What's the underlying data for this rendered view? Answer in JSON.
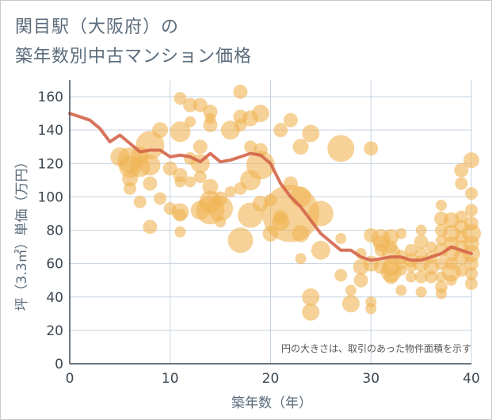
{
  "title_line1": "関目駅（大阪府）の",
  "title_line2": "築年数別中古マンション価格",
  "chart_data": {
    "type": "scatter",
    "xlabel": "築年数（年）",
    "ylabel": "坪（3.3㎡）単価（万円）",
    "xlim": [
      0,
      40
    ],
    "ylim": [
      0,
      170
    ],
    "x_ticks": [
      0,
      10,
      20,
      30,
      40
    ],
    "y_ticks": [
      0,
      20,
      40,
      60,
      80,
      100,
      120,
      140,
      160
    ],
    "grid": true,
    "annotation": "円の大きさは、取引のあった物件面積を示す",
    "bubble_color": "#f0b454",
    "line_color": "#d4654a",
    "points": [
      [
        9,
        140,
        10
      ],
      [
        11,
        139,
        13
      ],
      [
        11,
        159,
        8
      ],
      [
        12,
        155,
        9
      ],
      [
        13,
        155,
        9
      ],
      [
        14,
        151,
        9
      ],
      [
        14,
        147,
        7
      ],
      [
        14,
        143,
        9
      ],
      [
        12,
        145,
        7
      ],
      [
        16,
        140,
        12
      ],
      [
        17,
        163,
        9
      ],
      [
        17,
        148,
        9
      ],
      [
        17,
        143,
        8
      ],
      [
        18,
        147,
        10
      ],
      [
        18,
        130,
        8
      ],
      [
        19,
        150,
        11
      ],
      [
        5,
        124,
        12
      ],
      [
        6,
        122,
        16
      ],
      [
        6,
        118,
        14
      ],
      [
        7,
        118,
        13
      ],
      [
        7,
        125,
        11
      ],
      [
        8,
        131,
        18
      ],
      [
        8,
        119,
        13
      ],
      [
        6,
        111,
        10
      ],
      [
        6,
        105,
        8
      ],
      [
        8,
        108,
        9
      ],
      [
        9,
        99,
        8
      ],
      [
        7,
        97,
        8
      ],
      [
        10,
        117,
        9
      ],
      [
        11,
        113,
        9
      ],
      [
        11,
        109,
        7
      ],
      [
        12,
        109,
        7
      ],
      [
        12,
        123,
        8
      ],
      [
        13,
        130,
        9
      ],
      [
        13,
        112,
        8
      ],
      [
        13,
        120,
        12
      ],
      [
        14,
        106,
        10
      ],
      [
        14,
        97,
        14
      ],
      [
        14,
        92,
        18
      ],
      [
        15,
        99,
        9
      ],
      [
        15,
        93,
        16
      ],
      [
        16,
        103,
        7
      ],
      [
        17,
        105,
        8
      ],
      [
        18,
        110,
        13
      ],
      [
        19,
        119,
        18
      ],
      [
        19,
        128,
        9
      ],
      [
        10,
        93,
        8
      ],
      [
        11,
        91,
        11
      ],
      [
        11,
        89,
        8
      ],
      [
        13,
        92,
        12
      ],
      [
        15,
        85,
        7
      ],
      [
        8,
        82,
        9
      ],
      [
        11,
        79,
        7
      ],
      [
        17,
        74,
        16
      ],
      [
        18,
        89,
        16
      ],
      [
        19,
        96,
        10
      ],
      [
        21,
        140,
        9
      ],
      [
        22,
        146,
        9
      ],
      [
        23,
        130,
        10
      ],
      [
        24,
        138,
        11
      ],
      [
        22,
        108,
        9
      ],
      [
        23,
        100,
        13
      ],
      [
        22,
        90,
        36
      ],
      [
        21,
        88,
        9
      ],
      [
        20,
        98,
        8
      ],
      [
        21,
        85,
        11
      ],
      [
        20,
        78,
        10
      ],
      [
        23,
        78,
        11
      ],
      [
        23,
        63,
        7
      ],
      [
        25,
        90,
        16
      ],
      [
        25,
        68,
        12
      ],
      [
        27,
        129,
        17
      ],
      [
        27,
        75,
        7
      ],
      [
        30,
        129,
        9
      ],
      [
        24,
        40,
        11
      ],
      [
        24,
        31,
        11
      ],
      [
        27,
        53,
        8
      ],
      [
        28,
        44,
        7
      ],
      [
        28,
        36,
        11
      ],
      [
        29,
        58,
        10
      ],
      [
        29,
        50,
        9
      ],
      [
        29,
        66,
        7
      ],
      [
        30,
        60,
        10
      ],
      [
        30,
        77,
        9
      ],
      [
        31,
        75,
        12
      ],
      [
        30,
        37,
        7
      ],
      [
        30,
        33,
        7
      ],
      [
        31,
        68,
        8
      ],
      [
        31,
        72,
        10
      ],
      [
        31,
        58,
        9
      ],
      [
        32,
        76,
        10
      ],
      [
        32,
        70,
        8
      ],
      [
        32,
        66,
        12
      ],
      [
        32,
        58,
        11
      ],
      [
        32,
        55,
        13
      ],
      [
        32,
        52,
        9
      ],
      [
        33,
        78,
        7
      ],
      [
        33,
        64,
        9
      ],
      [
        33,
        60,
        8
      ],
      [
        33,
        56,
        7
      ],
      [
        33,
        44,
        7
      ],
      [
        34,
        68,
        8
      ],
      [
        34,
        62,
        9
      ],
      [
        34,
        58,
        7
      ],
      [
        34,
        52,
        7
      ],
      [
        35,
        80,
        7
      ],
      [
        35,
        73,
        9
      ],
      [
        35,
        66,
        8
      ],
      [
        35,
        60,
        10
      ],
      [
        35,
        52,
        8
      ],
      [
        35,
        43,
        7
      ],
      [
        36,
        70,
        7
      ],
      [
        36,
        64,
        8
      ],
      [
        36,
        58,
        10
      ],
      [
        36,
        52,
        8
      ],
      [
        37,
        95,
        7
      ],
      [
        37,
        87,
        9
      ],
      [
        37,
        80,
        8
      ],
      [
        37,
        74,
        7
      ],
      [
        37,
        68,
        9
      ],
      [
        37,
        60,
        8
      ],
      [
        37,
        52,
        7
      ],
      [
        37,
        46,
        8
      ],
      [
        37,
        42,
        7
      ],
      [
        38,
        86,
        10
      ],
      [
        38,
        78,
        11
      ],
      [
        38,
        72,
        9
      ],
      [
        38,
        66,
        10
      ],
      [
        38,
        60,
        8
      ],
      [
        38,
        55,
        12
      ],
      [
        38,
        50,
        7
      ],
      [
        39,
        116,
        9
      ],
      [
        39,
        88,
        8
      ],
      [
        39,
        82,
        9
      ],
      [
        39,
        76,
        8
      ],
      [
        39,
        70,
        9
      ],
      [
        39,
        64,
        10
      ],
      [
        39,
        56,
        8
      ],
      [
        39,
        108,
        8
      ],
      [
        40,
        122,
        10
      ],
      [
        40,
        102,
        8
      ],
      [
        40,
        92,
        8
      ],
      [
        40,
        84,
        9
      ],
      [
        40,
        78,
        12
      ],
      [
        40,
        72,
        10
      ],
      [
        40,
        66,
        11
      ],
      [
        40,
        60,
        9
      ],
      [
        40,
        54,
        8
      ],
      [
        40,
        48,
        8
      ]
    ],
    "trend": {
      "name": "",
      "x": [
        0,
        1,
        2,
        3,
        4,
        5,
        6,
        7,
        8,
        9,
        10,
        11,
        12,
        13,
        14,
        15,
        16,
        17,
        18,
        19,
        20,
        21,
        22,
        23,
        24,
        25,
        26,
        27,
        28,
        29,
        30,
        31,
        32,
        33,
        34,
        35,
        36,
        37,
        38,
        39,
        40
      ],
      "y": [
        150,
        148,
        146,
        141,
        133,
        137,
        132,
        127,
        128,
        128,
        124,
        125,
        124,
        121,
        126,
        121,
        122,
        124,
        126,
        125,
        120,
        108,
        100,
        94,
        86,
        78,
        73,
        68,
        68,
        64,
        62,
        63,
        64,
        64,
        62,
        62,
        64,
        66,
        70,
        68,
        66
      ]
    }
  }
}
